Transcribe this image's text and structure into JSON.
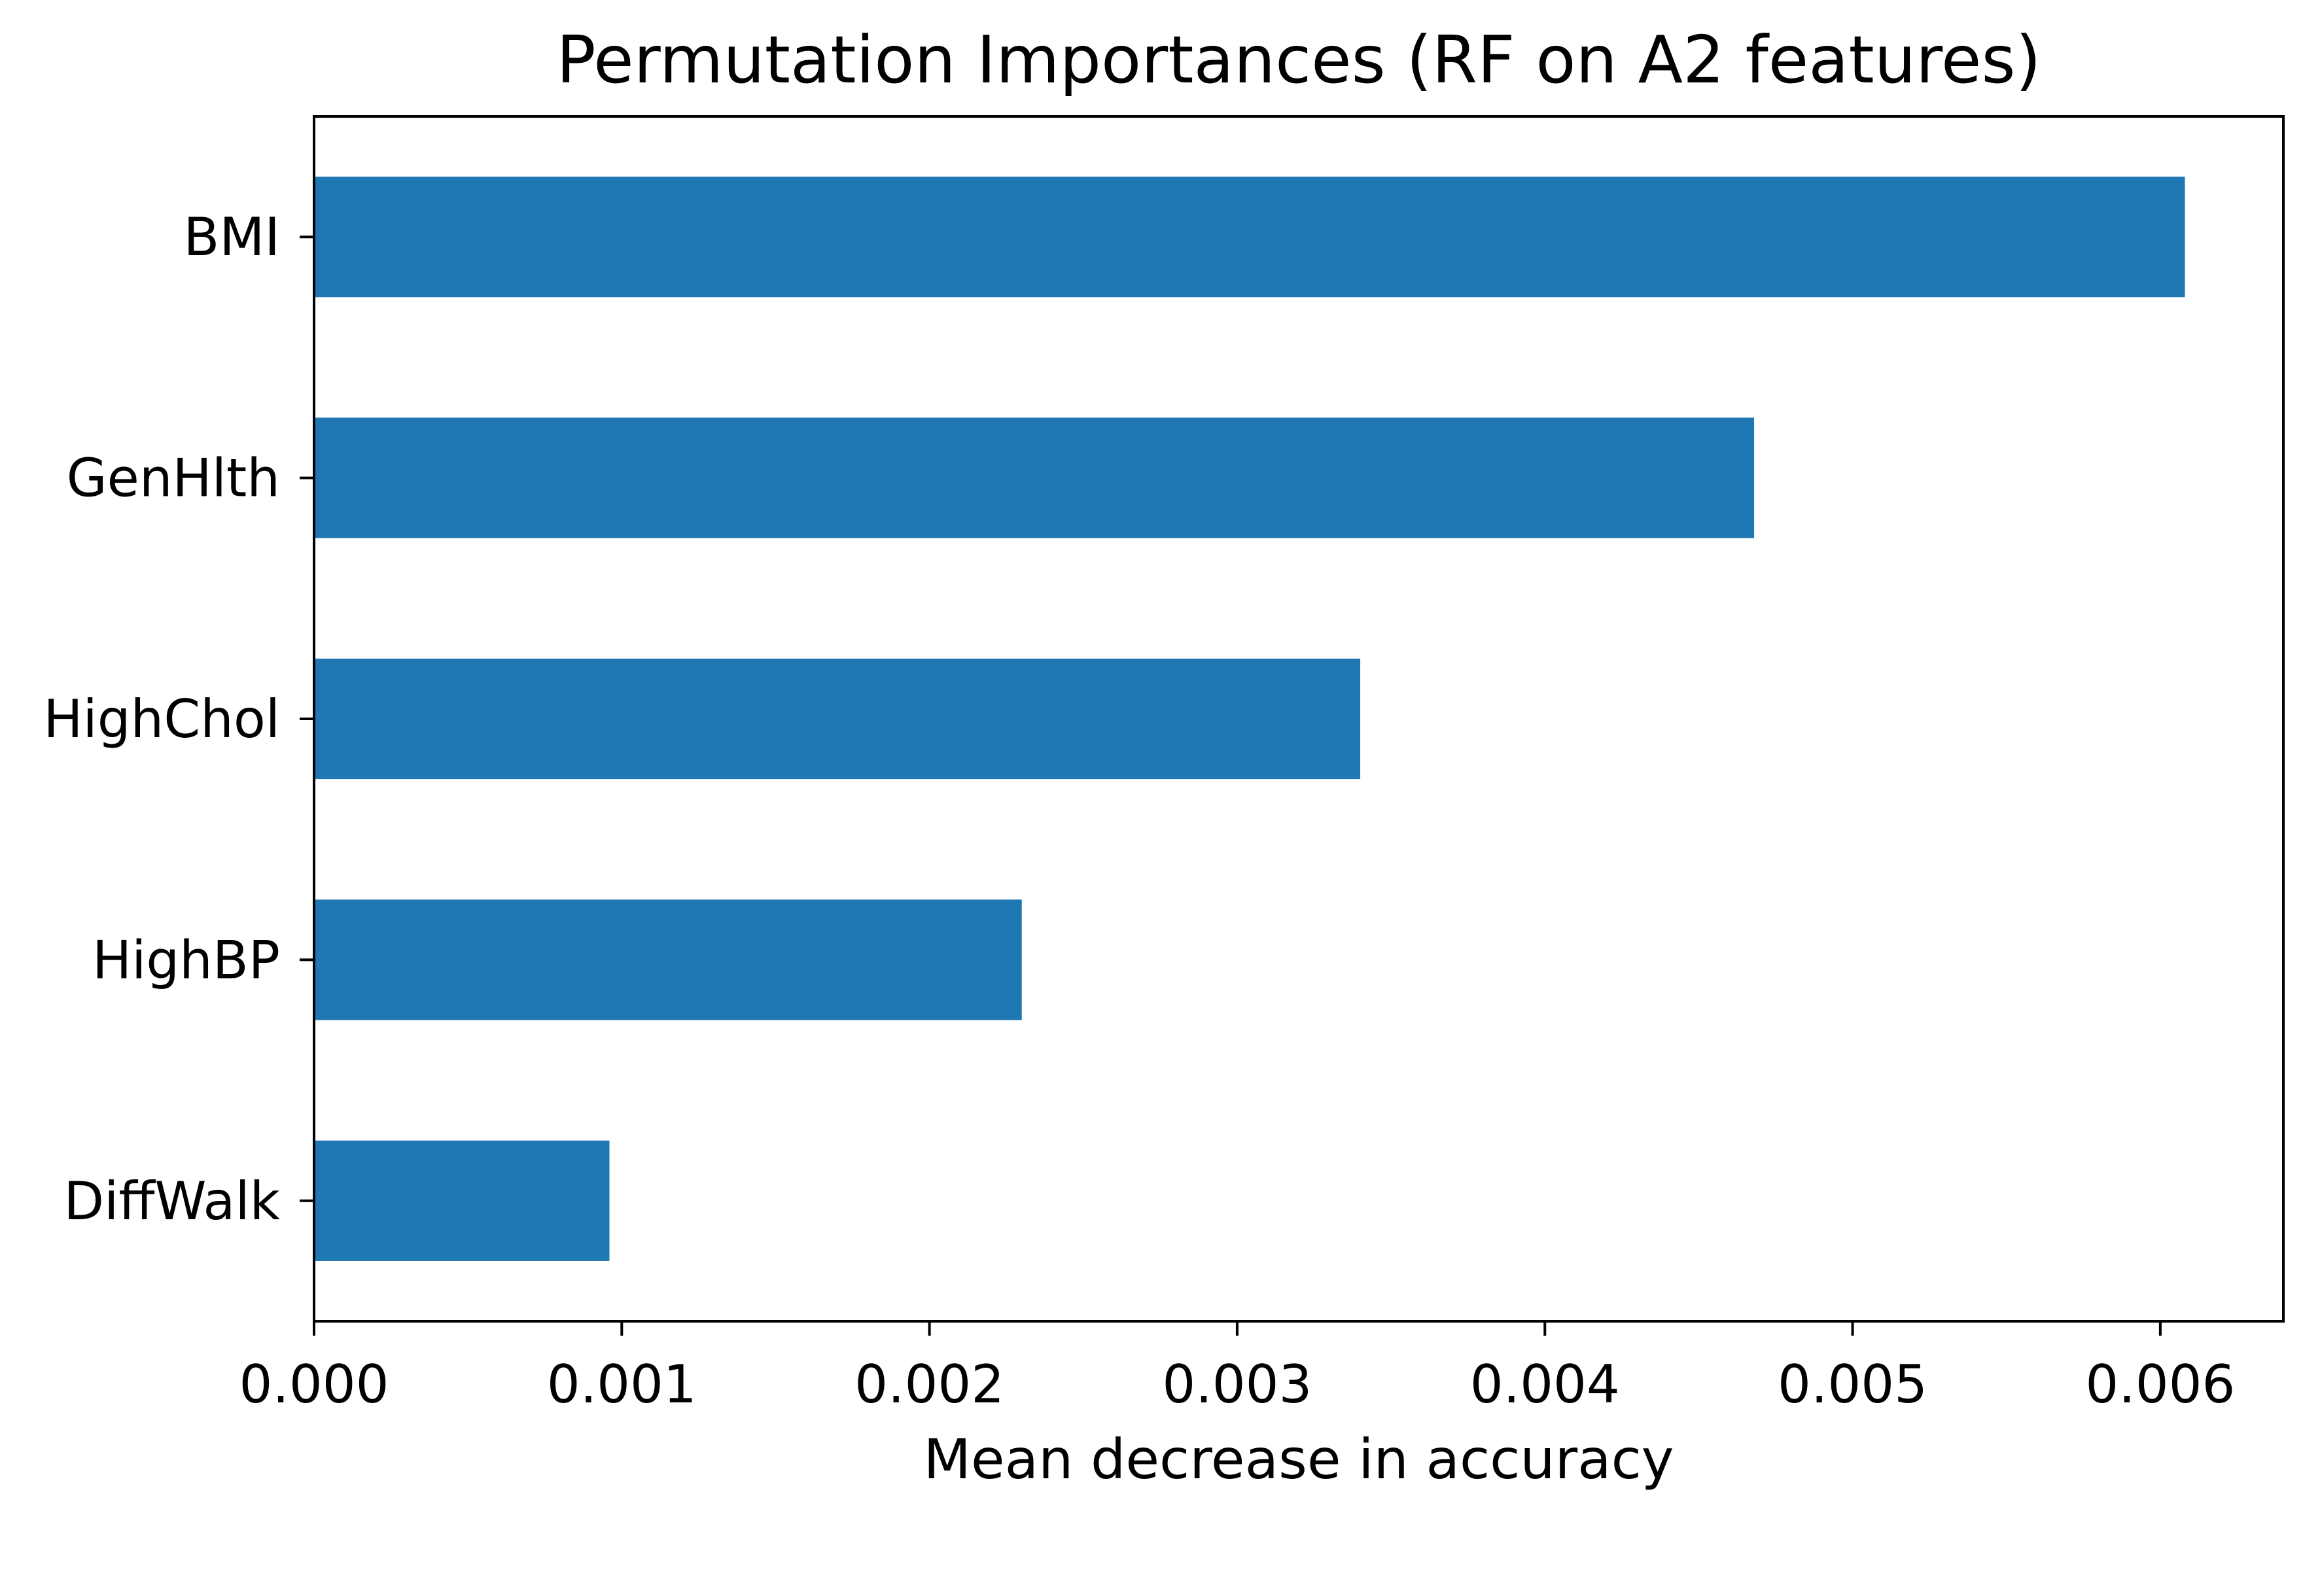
{
  "chart_data": {
    "type": "bar",
    "orientation": "horizontal",
    "title": "Permutation Importances (RF on A2 features)",
    "xlabel": "Mean decrease in accuracy",
    "ylabel": "",
    "categories": [
      "DiffWalk",
      "HighBP",
      "HighChol",
      "GenHlth",
      "BMI"
    ],
    "values": [
      0.00096,
      0.0023,
      0.0034,
      0.00468,
      0.00608
    ],
    "xticks": [
      0.0,
      0.001,
      0.002,
      0.003,
      0.004,
      0.005,
      0.006
    ],
    "xtick_labels": [
      "0.000",
      "0.001",
      "0.002",
      "0.003",
      "0.004",
      "0.005",
      "0.006"
    ],
    "xlim": [
      0,
      0.0064
    ],
    "bar_color": "#1f77b4",
    "grid": false,
    "legend": "none"
  }
}
